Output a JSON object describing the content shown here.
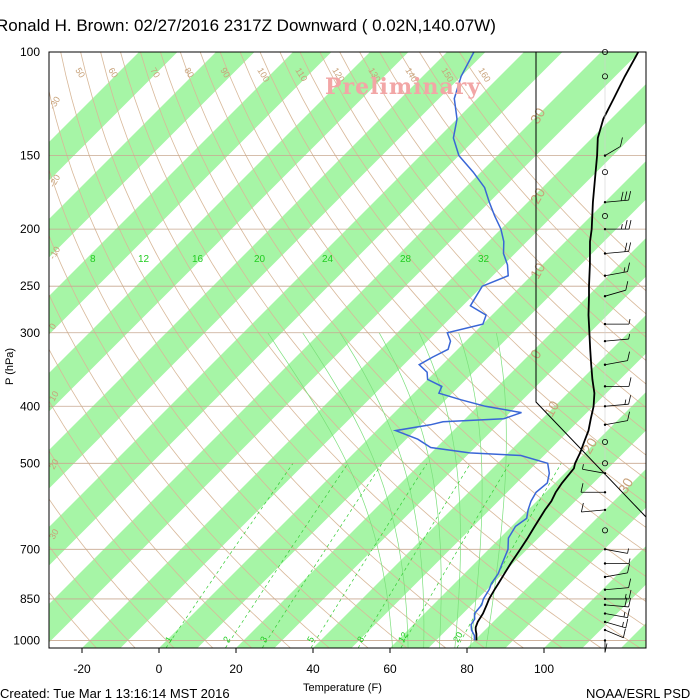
{
  "title": "Ronald H. Brown: 02/27/2016 2317Z Downward ( 0.02N,140.07W)",
  "watermark": "Preliminary",
  "footer_left": "Created: Tue Mar  1 13:16:14 MST 2016",
  "footer_right": "NOAA/ESRL PSD",
  "colors": {
    "temperature": "#000000",
    "dewpoint": "#3a66d6",
    "band": "#a6f5a6",
    "isotherm_band_edge": "#d2b48c",
    "mixing_ratio": "#22cc22",
    "adiabat": "#d2b48c"
  },
  "chart_data": {
    "type": "line",
    "subtype": "skew-T log-P sounding",
    "xlabel": "Temperature (F)",
    "ylabel": "P (hPa)",
    "xlim": [
      -30,
      120
    ],
    "ylim": [
      1030,
      100
    ],
    "y_scale": "log",
    "x_ticks": [
      -20,
      0,
      20,
      40,
      60,
      80,
      100
    ],
    "y_ticks": [
      100,
      150,
      200,
      250,
      300,
      400,
      500,
      700,
      850,
      1000
    ],
    "grid": true,
    "series": [
      {
        "key": "temperature",
        "points": [
          [
            1000,
            80.5
          ],
          [
            990,
            79.8
          ],
          [
            975,
            78.8
          ],
          [
            960,
            77.6
          ],
          [
            950,
            76.9
          ],
          [
            930,
            76.0
          ],
          [
            900,
            75.2
          ],
          [
            870,
            73.9
          ],
          [
            850,
            73.0
          ],
          [
            820,
            72.0
          ],
          [
            800,
            71.4
          ],
          [
            770,
            70.4
          ],
          [
            740,
            69.4
          ],
          [
            700,
            68.2
          ],
          [
            670,
            67.2
          ],
          [
            640,
            66.0
          ],
          [
            600,
            64.4
          ],
          [
            580,
            63.8
          ],
          [
            560,
            62.6
          ],
          [
            540,
            61.8
          ],
          [
            510,
            61.1
          ],
          [
            500,
            60.1
          ],
          [
            480,
            58.7
          ],
          [
            460,
            56.9
          ],
          [
            440,
            55.1
          ],
          [
            420,
            52.6
          ],
          [
            400,
            50.1
          ],
          [
            380,
            46.9
          ],
          [
            360,
            42.8
          ],
          [
            340,
            38.7
          ],
          [
            320,
            34.4
          ],
          [
            300,
            29.9
          ],
          [
            280,
            25.1
          ],
          [
            260,
            20.3
          ],
          [
            250,
            17.7
          ],
          [
            230,
            12.4
          ],
          [
            210,
            6.4
          ],
          [
            200,
            3.6
          ],
          [
            180,
            -3.1
          ],
          [
            160,
            -10.2
          ],
          [
            150,
            -14.1
          ],
          [
            140,
            -18.5
          ],
          [
            130,
            -22.0
          ],
          [
            120,
            -24.6
          ],
          [
            110,
            -27.5
          ],
          [
            100,
            -30.3
          ]
        ]
      },
      {
        "key": "dewpoint",
        "points": [
          [
            1000,
            80.0
          ],
          [
            980,
            78.6
          ],
          [
            960,
            76.5
          ],
          [
            940,
            75.0
          ],
          [
            920,
            74.5
          ],
          [
            900,
            73.0
          ],
          [
            870,
            72.6
          ],
          [
            850,
            71.5
          ],
          [
            820,
            70.6
          ],
          [
            800,
            69.6
          ],
          [
            770,
            68.8
          ],
          [
            740,
            67.2
          ],
          [
            700,
            65.0
          ],
          [
            670,
            62.2
          ],
          [
            640,
            61.0
          ],
          [
            620,
            61.8
          ],
          [
            600,
            60.0
          ],
          [
            580,
            58.5
          ],
          [
            560,
            57.5
          ],
          [
            540,
            58.0
          ],
          [
            520,
            56.0
          ],
          [
            500,
            53.0
          ],
          [
            485,
            44.0
          ],
          [
            480,
            30.0
          ],
          [
            470,
            18.5
          ],
          [
            455,
            13.0
          ],
          [
            440,
            5.0
          ],
          [
            430,
            12.5
          ],
          [
            425,
            15.0
          ],
          [
            420,
            30.0
          ],
          [
            410,
            33.0
          ],
          [
            400,
            22.0
          ],
          [
            390,
            14.0
          ],
          [
            380,
            6.5
          ],
          [
            370,
            5.5
          ],
          [
            360,
            0.0
          ],
          [
            350,
            -2.0
          ],
          [
            340,
            -6.0
          ],
          [
            330,
            -4.5
          ],
          [
            320,
            -2.5
          ],
          [
            310,
            -4.0
          ],
          [
            300,
            -7.0
          ],
          [
            290,
            0.0
          ],
          [
            280,
            -1.5
          ],
          [
            270,
            -8.0
          ],
          [
            260,
            -9.0
          ],
          [
            250,
            -10.0
          ],
          [
            240,
            -6.0
          ],
          [
            230,
            -9.0
          ],
          [
            220,
            -13.0
          ],
          [
            210,
            -16.0
          ],
          [
            200,
            -20.0
          ],
          [
            190,
            -25.0
          ],
          [
            180,
            -30.0
          ],
          [
            170,
            -35.0
          ],
          [
            160,
            -42.0
          ],
          [
            150,
            -50.0
          ],
          [
            140,
            -56.0
          ],
          [
            130,
            -60.0
          ],
          [
            120,
            -66.0
          ],
          [
            110,
            -70.0
          ],
          [
            100,
            -73.0
          ]
        ]
      }
    ],
    "dry_adiabat_labels": [
      "50",
      "60",
      "70",
      "80",
      "90",
      "100",
      "110",
      "120",
      "130",
      "140",
      "150",
      "160"
    ],
    "mixing_ratio_labels": [
      "8",
      "12",
      "16",
      "20",
      "24",
      "28",
      "32"
    ],
    "mixing_ratio_low_labels": [
      "1",
      "2",
      "3",
      "5",
      "8",
      "12",
      "20"
    ],
    "isotherm_labels": [
      "-30",
      "-20",
      "-10",
      "0",
      "10",
      "20",
      "30"
    ],
    "isotherm_band_labels": [
      "30",
      "20",
      "10",
      "0",
      "10",
      "20",
      "30"
    ],
    "wind_barb_levels": [
      [
        1000,
        10,
        0
      ],
      [
        960,
        14,
        310
      ],
      [
        930,
        16,
        300
      ],
      [
        900,
        18,
        290
      ],
      [
        870,
        20,
        280
      ],
      [
        850,
        15,
        270
      ],
      [
        820,
        12,
        260
      ],
      [
        780,
        10,
        250
      ],
      [
        740,
        8,
        270
      ],
      [
        700,
        5,
        290
      ],
      [
        650,
        0,
        0
      ],
      [
        600,
        12,
        80
      ],
      [
        560,
        10,
        90
      ],
      [
        520,
        6,
        110
      ],
      [
        500,
        0,
        0
      ],
      [
        460,
        0,
        0
      ],
      [
        430,
        10,
        250
      ],
      [
        400,
        15,
        260
      ],
      [
        370,
        12,
        270
      ],
      [
        340,
        10,
        250
      ],
      [
        310,
        8,
        260
      ],
      [
        290,
        6,
        270
      ],
      [
        260,
        10,
        240
      ],
      [
        240,
        15,
        250
      ],
      [
        220,
        20,
        260
      ],
      [
        200,
        25,
        270
      ],
      [
        190,
        0,
        0
      ],
      [
        180,
        30,
        260
      ],
      [
        160,
        0,
        0
      ],
      [
        150,
        10,
        220
      ],
      [
        110,
        0,
        0
      ],
      [
        100,
        0,
        0
      ]
    ]
  }
}
